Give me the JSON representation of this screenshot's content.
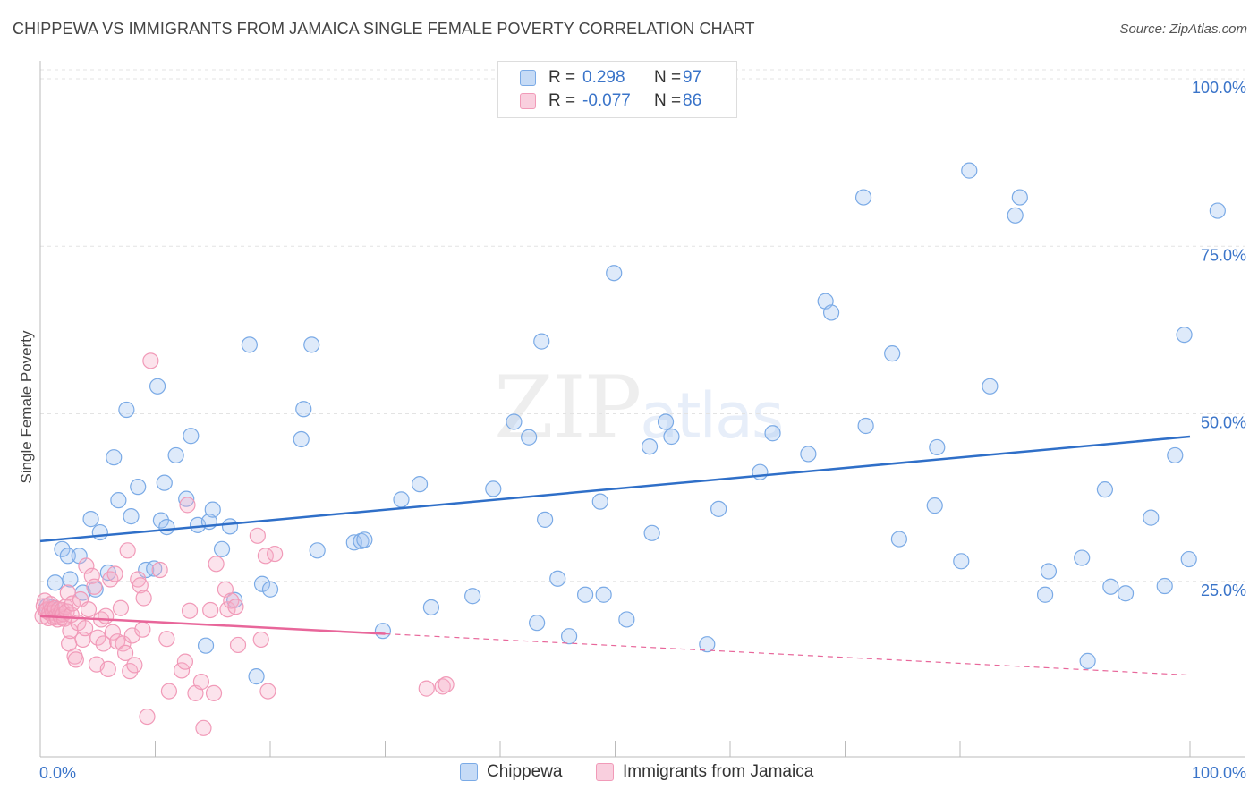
{
  "title": "CHIPPEWA VS IMMIGRANTS FROM JAMAICA SINGLE FEMALE POVERTY CORRELATION CHART",
  "source": "Source: ZipAtlas.com",
  "legend": {
    "rows": [
      {
        "r_label": "R =",
        "r_value": "0.298",
        "n_label": "N =",
        "n_value": "97"
      },
      {
        "r_label": "R =",
        "r_value": "-0.077",
        "n_label": "N =",
        "n_value": "86"
      }
    ]
  },
  "watermark": {
    "zip": "ZIP",
    "atlas": "atlas"
  },
  "chart_data": {
    "type": "scatter",
    "ylabel": "Single Female Poverty",
    "xlabel": "",
    "xlim": [
      0,
      100
    ],
    "ylim": [
      0,
      100
    ],
    "x_tick_labels": [
      "0.0%",
      "100.0%"
    ],
    "y_tick_labels": [
      {
        "value": 100,
        "label": "100.0%"
      },
      {
        "value": 75,
        "label": "75.0%"
      },
      {
        "value": 50,
        "label": "50.0%"
      },
      {
        "value": 25,
        "label": "25.0%"
      }
    ],
    "grid": true,
    "series": [
      {
        "name": "Chippewa",
        "color": "#7aaae6",
        "fill": "rgba(160,195,240,0.35)",
        "line_color": "#2f6fc8",
        "trend": {
          "x0": 0,
          "y0": 32.2,
          "x1": 100,
          "y1": 47.8,
          "solid_until": 100
        },
        "points": [
          [
            1.3,
            26
          ],
          [
            1.9,
            31
          ],
          [
            2.4,
            30
          ],
          [
            2.6,
            26.5
          ],
          [
            3.4,
            30
          ],
          [
            3.7,
            24.5
          ],
          [
            4.4,
            35.5
          ],
          [
            4.8,
            25
          ],
          [
            5.2,
            33.5
          ],
          [
            5.9,
            27.5
          ],
          [
            6.4,
            44.7
          ],
          [
            6.8,
            38.3
          ],
          [
            7.5,
            51.8
          ],
          [
            7.9,
            35.9
          ],
          [
            8.5,
            40.3
          ],
          [
            9.2,
            27.9
          ],
          [
            9.9,
            28.1
          ],
          [
            10.2,
            55.3
          ],
          [
            10.5,
            35.3
          ],
          [
            10.8,
            40.9
          ],
          [
            11.0,
            34.3
          ],
          [
            11.8,
            45
          ],
          [
            12.7,
            38.5
          ],
          [
            13.1,
            47.9
          ],
          [
            13.7,
            34.6
          ],
          [
            14.4,
            16.6
          ],
          [
            14.7,
            35.1
          ],
          [
            15.0,
            36.9
          ],
          [
            15.8,
            31
          ],
          [
            16.5,
            34.4
          ],
          [
            16.9,
            23.4
          ],
          [
            18.2,
            61.5
          ],
          [
            18.8,
            12
          ],
          [
            19.3,
            25.8
          ],
          [
            20.0,
            25
          ],
          [
            22.7,
            47.4
          ],
          [
            22.9,
            51.9
          ],
          [
            23.6,
            61.5
          ],
          [
            24.1,
            30.8
          ],
          [
            27.3,
            32
          ],
          [
            27.9,
            32.2
          ],
          [
            28.2,
            32.4
          ],
          [
            29.8,
            18.8
          ],
          [
            31.4,
            38.4
          ],
          [
            33.0,
            40.7
          ],
          [
            34.0,
            22.3
          ],
          [
            37.6,
            24
          ],
          [
            39.4,
            40
          ],
          [
            41.2,
            50
          ],
          [
            42.5,
            47.7
          ],
          [
            43.2,
            20
          ],
          [
            43.6,
            62
          ],
          [
            43.9,
            35.4
          ],
          [
            45.0,
            26.6
          ],
          [
            46.0,
            18
          ],
          [
            47.4,
            24.2
          ],
          [
            48.7,
            38.1
          ],
          [
            49.0,
            24.2
          ],
          [
            49.9,
            72.2
          ],
          [
            51.0,
            20.5
          ],
          [
            53.0,
            46.3
          ],
          [
            53.2,
            33.4
          ],
          [
            54.4,
            50
          ],
          [
            54.9,
            47.8
          ],
          [
            58.0,
            16.8
          ],
          [
            59.0,
            37
          ],
          [
            62.6,
            42.5
          ],
          [
            63.7,
            48.3
          ],
          [
            66.8,
            45.2
          ],
          [
            68.3,
            68
          ],
          [
            68.8,
            66.3
          ],
          [
            71.6,
            83.5
          ],
          [
            71.8,
            49.4
          ],
          [
            74.1,
            60.2
          ],
          [
            74.7,
            32.5
          ],
          [
            77.8,
            37.5
          ],
          [
            78.0,
            46.2
          ],
          [
            80.1,
            29.2
          ],
          [
            80.8,
            87.5
          ],
          [
            82.6,
            55.3
          ],
          [
            84.8,
            80.8
          ],
          [
            85.2,
            83.5
          ],
          [
            87.4,
            24.2
          ],
          [
            87.7,
            27.7
          ],
          [
            90.6,
            29.7
          ],
          [
            91.1,
            14.3
          ],
          [
            92.6,
            39.9
          ],
          [
            93.1,
            25.4
          ],
          [
            94.4,
            24.4
          ],
          [
            96.6,
            35.7
          ],
          [
            97.8,
            25.5
          ],
          [
            98.7,
            45
          ],
          [
            99.5,
            63
          ],
          [
            99.9,
            29.5
          ],
          [
            102.4,
            81.5
          ],
          [
            1.0,
            22.3
          ],
          [
            0.6,
            22.5
          ]
        ]
      },
      {
        "name": "Immigrants from Jamaica",
        "color": "#f19ab8",
        "fill": "rgba(245,175,200,0.35)",
        "line_color": "#e8669a",
        "trend": {
          "x0": 0,
          "y0": 21.0,
          "x1": 100,
          "y1": 12.2,
          "solid_until": 30
        },
        "points": [
          [
            0.2,
            21
          ],
          [
            0.3,
            22.5
          ],
          [
            0.4,
            23.3
          ],
          [
            0.5,
            21.8
          ],
          [
            0.6,
            22
          ],
          [
            0.7,
            20.7
          ],
          [
            0.8,
            21.5
          ],
          [
            0.9,
            22.8
          ],
          [
            1.0,
            22
          ],
          [
            1.1,
            21.5
          ],
          [
            1.2,
            20.8
          ],
          [
            1.3,
            22.2
          ],
          [
            1.4,
            21
          ],
          [
            1.5,
            20.5
          ],
          [
            1.6,
            22
          ],
          [
            1.7,
            21.2
          ],
          [
            1.8,
            20.8
          ],
          [
            1.9,
            21.9
          ],
          [
            2.0,
            21.3
          ],
          [
            2.1,
            20.6
          ],
          [
            2.2,
            22.4
          ],
          [
            2.3,
            21.7
          ],
          [
            2.4,
            24.5
          ],
          [
            2.5,
            16.9
          ],
          [
            2.6,
            18.8
          ],
          [
            2.7,
            21.2
          ],
          [
            2.8,
            22.9
          ],
          [
            3.0,
            15
          ],
          [
            3.1,
            14.5
          ],
          [
            3.3,
            20
          ],
          [
            3.5,
            23.5
          ],
          [
            3.7,
            17.5
          ],
          [
            3.9,
            19.2
          ],
          [
            4.0,
            28.5
          ],
          [
            4.2,
            22
          ],
          [
            4.5,
            27
          ],
          [
            4.7,
            25.4
          ],
          [
            4.9,
            13.8
          ],
          [
            5.0,
            17.8
          ],
          [
            5.3,
            20.5
          ],
          [
            5.5,
            16.9
          ],
          [
            5.7,
            21
          ],
          [
            5.9,
            13.1
          ],
          [
            6.1,
            26.5
          ],
          [
            6.3,
            18.6
          ],
          [
            6.5,
            27.3
          ],
          [
            6.7,
            17.2
          ],
          [
            7.0,
            22.2
          ],
          [
            7.2,
            16.9
          ],
          [
            7.4,
            15.5
          ],
          [
            7.6,
            30.8
          ],
          [
            7.8,
            12.8
          ],
          [
            8.0,
            18.1
          ],
          [
            8.2,
            13.7
          ],
          [
            8.5,
            26.5
          ],
          [
            8.7,
            25.6
          ],
          [
            8.9,
            19
          ],
          [
            9.0,
            23.7
          ],
          [
            9.3,
            6
          ],
          [
            9.6,
            59.1
          ],
          [
            10.4,
            27.9
          ],
          [
            11.0,
            17.6
          ],
          [
            11.2,
            9.8
          ],
          [
            12.3,
            12.9
          ],
          [
            12.6,
            14.2
          ],
          [
            12.8,
            37.6
          ],
          [
            13.0,
            21.8
          ],
          [
            13.5,
            9.5
          ],
          [
            14.0,
            11.2
          ],
          [
            14.2,
            4.3
          ],
          [
            14.8,
            21.9
          ],
          [
            15.1,
            9.5
          ],
          [
            15.3,
            28.8
          ],
          [
            16.1,
            25
          ],
          [
            16.3,
            22
          ],
          [
            16.6,
            23.3
          ],
          [
            17.0,
            22.4
          ],
          [
            17.2,
            16.7
          ],
          [
            18.9,
            33
          ],
          [
            19.2,
            17.5
          ],
          [
            19.6,
            30
          ],
          [
            19.8,
            9.8
          ],
          [
            20.4,
            30.3
          ],
          [
            33.6,
            10.2
          ],
          [
            35.0,
            10.5
          ],
          [
            35.3,
            10.8
          ]
        ]
      }
    ]
  },
  "bottom_legend": [
    {
      "name": "Chippewa"
    },
    {
      "name": "Immigrants from Jamaica"
    }
  ]
}
